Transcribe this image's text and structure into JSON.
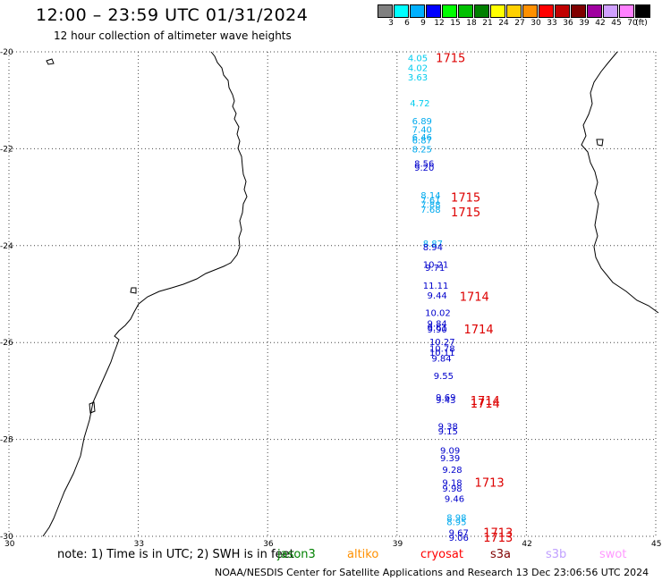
{
  "header": {
    "title": "12:00 – 23:59 UTC 01/31/2024",
    "subtitle": "12 hour collection of altimeter wave heights"
  },
  "legend": {
    "swatches": [
      {
        "color": "#808080",
        "label": "3"
      },
      {
        "color": "#00ffff",
        "label": "6"
      },
      {
        "color": "#00b0ff",
        "label": "9"
      },
      {
        "color": "#0000ff",
        "label": "12"
      },
      {
        "color": "#00ff00",
        "label": "15"
      },
      {
        "color": "#00c000",
        "label": "18"
      },
      {
        "color": "#008000",
        "label": "21"
      },
      {
        "color": "#ffff00",
        "label": "24"
      },
      {
        "color": "#ffd000",
        "label": "27"
      },
      {
        "color": "#ff9000",
        "label": "30"
      },
      {
        "color": "#ff0000",
        "label": "33"
      },
      {
        "color": "#c00000",
        "label": "36"
      },
      {
        "color": "#800000",
        "label": "39"
      },
      {
        "color": "#a000a0",
        "label": "42"
      },
      {
        "color": "#d0a0ff",
        "label": "45"
      },
      {
        "color": "#ff80ff",
        "label": "70"
      },
      {
        "color": "#000000",
        "label": "(ft)"
      }
    ]
  },
  "map": {
    "lon_range": [
      30,
      45
    ],
    "lat_range": [
      -30,
      -20
    ],
    "x_ticks": [
      "30",
      "33",
      "36",
      "39",
      "42",
      "45"
    ],
    "y_ticks": [
      "-20",
      "-22",
      "-24",
      "-26",
      "-28",
      "-30"
    ],
    "grid": "dotted"
  },
  "observations": [
    {
      "v": "4.05",
      "lon": 39.25,
      "lat": -20.12,
      "color": "#00ccee"
    },
    {
      "v": "4.02",
      "lon": 39.25,
      "lat": -20.32,
      "color": "#00ccee"
    },
    {
      "v": "3.63",
      "lon": 39.25,
      "lat": -20.52,
      "color": "#00ccee"
    },
    {
      "v": "4.72",
      "lon": 39.3,
      "lat": -21.05,
      "color": "#00ccee"
    },
    {
      "v": "6.89",
      "lon": 39.35,
      "lat": -21.42,
      "color": "#00aaee"
    },
    {
      "v": "7.40",
      "lon": 39.35,
      "lat": -21.6,
      "color": "#00aaee"
    },
    {
      "v": "6.46",
      "lon": 39.35,
      "lat": -21.75,
      "color": "#00aaee"
    },
    {
      "v": "6.87",
      "lon": 39.35,
      "lat": -21.82,
      "color": "#00aaee"
    },
    {
      "v": "8.25",
      "lon": 39.35,
      "lat": -22.0,
      "color": "#00aaee"
    },
    {
      "v": "8.56",
      "lon": 39.4,
      "lat": -22.3,
      "color": "#0000cc"
    },
    {
      "v": "9.20",
      "lon": 39.4,
      "lat": -22.38,
      "color": "#0000cc"
    },
    {
      "v": "8.14",
      "lon": 39.55,
      "lat": -22.95,
      "color": "#00aaee"
    },
    {
      "v": "7.61",
      "lon": 39.55,
      "lat": -23.05,
      "color": "#00aaee"
    },
    {
      "v": "7.88",
      "lon": 39.55,
      "lat": -23.15,
      "color": "#00aaee"
    },
    {
      "v": "7.68",
      "lon": 39.55,
      "lat": -23.25,
      "color": "#00aaee"
    },
    {
      "v": "8.87",
      "lon": 39.6,
      "lat": -23.95,
      "color": "#00aaee"
    },
    {
      "v": "8.94",
      "lon": 39.6,
      "lat": -24.02,
      "color": "#0000cc"
    },
    {
      "v": "10.21",
      "lon": 39.6,
      "lat": -24.38,
      "color": "#0000cc"
    },
    {
      "v": "9.71",
      "lon": 39.65,
      "lat": -24.45,
      "color": "#0000cc"
    },
    {
      "v": "11.11",
      "lon": 39.6,
      "lat": -24.82,
      "color": "#0000cc"
    },
    {
      "v": "9.44",
      "lon": 39.7,
      "lat": -25.02,
      "color": "#0000cc"
    },
    {
      "v": "10.02",
      "lon": 39.65,
      "lat": -25.38,
      "color": "#0000cc"
    },
    {
      "v": "9.84",
      "lon": 39.7,
      "lat": -25.6,
      "color": "#0000cc"
    },
    {
      "v": "9.61",
      "lon": 39.7,
      "lat": -25.68,
      "color": "#0000cc"
    },
    {
      "v": "9.90",
      "lon": 39.7,
      "lat": -25.72,
      "color": "#0000cc"
    },
    {
      "v": "10.27",
      "lon": 39.75,
      "lat": -25.98,
      "color": "#0000cc"
    },
    {
      "v": "10.78",
      "lon": 39.75,
      "lat": -26.12,
      "color": "#0000cc"
    },
    {
      "v": "10.11",
      "lon": 39.75,
      "lat": -26.2,
      "color": "#0000cc"
    },
    {
      "v": "9.84",
      "lon": 39.8,
      "lat": -26.32,
      "color": "#0000cc"
    },
    {
      "v": "9.55",
      "lon": 39.85,
      "lat": -26.68,
      "color": "#0000cc"
    },
    {
      "v": "9.69",
      "lon": 39.9,
      "lat": -27.12,
      "color": "#0000cc"
    },
    {
      "v": "9.43",
      "lon": 39.9,
      "lat": -27.18,
      "color": "#0000cc"
    },
    {
      "v": "9.38",
      "lon": 39.95,
      "lat": -27.72,
      "color": "#0000cc"
    },
    {
      "v": "9.15",
      "lon": 39.95,
      "lat": -27.82,
      "color": "#0000cc"
    },
    {
      "v": "9.09",
      "lon": 40.0,
      "lat": -28.22,
      "color": "#0000cc"
    },
    {
      "v": "9.39",
      "lon": 40.0,
      "lat": -28.38,
      "color": "#0000cc"
    },
    {
      "v": "9.28",
      "lon": 40.05,
      "lat": -28.62,
      "color": "#0000cc"
    },
    {
      "v": "9.18",
      "lon": 40.05,
      "lat": -28.88,
      "color": "#0000cc"
    },
    {
      "v": "9.98",
      "lon": 40.05,
      "lat": -29.0,
      "color": "#0000cc"
    },
    {
      "v": "9.46",
      "lon": 40.1,
      "lat": -29.22,
      "color": "#0000cc"
    },
    {
      "v": "8.98",
      "lon": 40.15,
      "lat": -29.6,
      "color": "#00aaee"
    },
    {
      "v": "8.95",
      "lon": 40.15,
      "lat": -29.7,
      "color": "#00aaee"
    },
    {
      "v": "9.67",
      "lon": 40.2,
      "lat": -29.92,
      "color": "#0000cc"
    },
    {
      "v": "9.06",
      "lon": 40.2,
      "lat": -30.02,
      "color": "#0000cc"
    }
  ],
  "pass_times": [
    {
      "v": "1715",
      "lon": 39.9,
      "lat": -20.12
    },
    {
      "v": "1715",
      "lon": 40.25,
      "lat": -23.0
    },
    {
      "v": "1715",
      "lon": 40.25,
      "lat": -23.3
    },
    {
      "v": "1714",
      "lon": 40.45,
      "lat": -25.05
    },
    {
      "v": "1714",
      "lon": 40.55,
      "lat": -25.72
    },
    {
      "v": "1714",
      "lon": 40.7,
      "lat": -27.2
    },
    {
      "v": "1714",
      "lon": 40.7,
      "lat": -27.25
    },
    {
      "v": "1713",
      "lon": 40.8,
      "lat": -28.88
    },
    {
      "v": "1713",
      "lon": 41.0,
      "lat": -29.92
    },
    {
      "v": "1713",
      "lon": 41.0,
      "lat": -30.02
    }
  ],
  "footer": {
    "note": "note:  1) Time is in UTC; 2) SWH is in feet",
    "satellites": [
      {
        "name": "jason3",
        "color": "#008000"
      },
      {
        "name": "altiko",
        "color": "#ff9000"
      },
      {
        "name": "cryosat",
        "color": "#ff0000"
      },
      {
        "name": "s3a",
        "color": "#800000"
      },
      {
        "name": "s3b",
        "color": "#c0a0ff"
      },
      {
        "name": "swot",
        "color": "#ff99ff"
      }
    ],
    "credit": "NOAA/NESDIS Center for Satellite Applications and Research     13 Dec 23:06:56 UTC 2024"
  },
  "colors": {
    "pass_time": "#dd0000",
    "coast": "#000000",
    "grid": "#444444"
  }
}
